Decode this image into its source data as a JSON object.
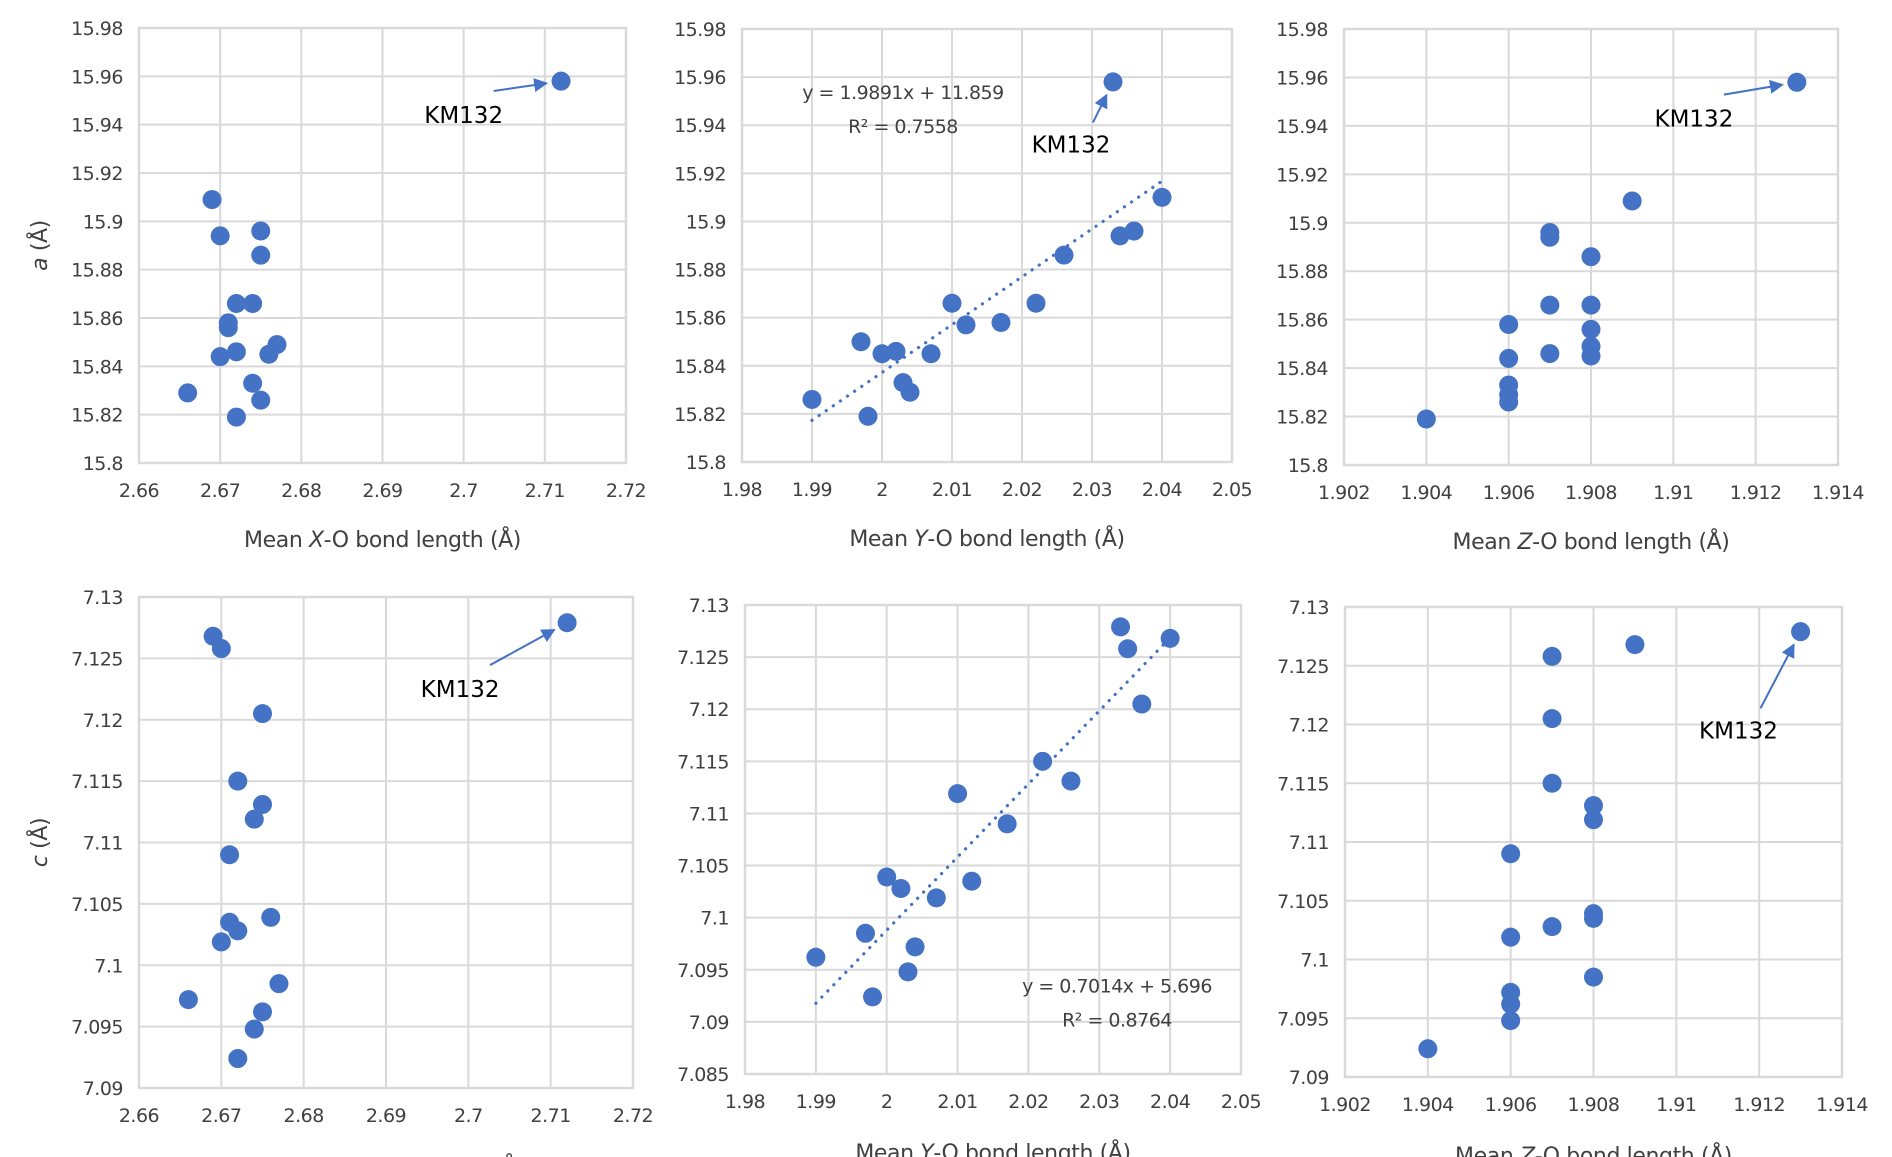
{
  "colors": {
    "marker": "#4472c4",
    "grid": "#d9d9d9",
    "text": "#404040",
    "annotation": "#000000"
  },
  "chart_data": [
    {
      "id": "a_vs_X",
      "type": "scatter",
      "title": "",
      "xlabel": {
        "prefix": "Mean ",
        "italic": "X",
        "suffix": "-O bond length (Å)"
      },
      "ylabel": {
        "italic": "a",
        "suffix": " (Å)"
      },
      "xlim": [
        2.66,
        2.72
      ],
      "ylim": [
        15.8,
        15.98
      ],
      "xticks": [
        "2.66",
        "2.67",
        "2.68",
        "2.69",
        "2.7",
        "2.71",
        "2.72"
      ],
      "yticks": [
        "15.8",
        "15.82",
        "15.84",
        "15.86",
        "15.88",
        "15.9",
        "15.92",
        "15.94",
        "15.96",
        "15.98"
      ],
      "grid": true,
      "points": [
        {
          "x": 2.669,
          "y": 15.909
        },
        {
          "x": 2.67,
          "y": 15.894
        },
        {
          "x": 2.675,
          "y": 15.896
        },
        {
          "x": 2.675,
          "y": 15.886
        },
        {
          "x": 2.672,
          "y": 15.866
        },
        {
          "x": 2.674,
          "y": 15.866
        },
        {
          "x": 2.671,
          "y": 15.858
        },
        {
          "x": 2.671,
          "y": 15.856
        },
        {
          "x": 2.677,
          "y": 15.849
        },
        {
          "x": 2.67,
          "y": 15.844
        },
        {
          "x": 2.672,
          "y": 15.846
        },
        {
          "x": 2.676,
          "y": 15.845
        },
        {
          "x": 2.674,
          "y": 15.833
        },
        {
          "x": 2.666,
          "y": 15.829
        },
        {
          "x": 2.675,
          "y": 15.826
        },
        {
          "x": 2.672,
          "y": 15.819
        },
        {
          "x": 2.712,
          "y": 15.958
        }
      ],
      "annotations": [
        {
          "text": "KM132",
          "target": {
            "x": 2.712,
            "y": 15.958
          },
          "label_at": {
            "x": 2.7,
            "y": 15.944
          }
        }
      ],
      "trendline": null
    },
    {
      "id": "a_vs_Y",
      "type": "scatter",
      "title": "",
      "xlabel": {
        "prefix": "Mean ",
        "italic": "Y",
        "suffix": "-O bond length (Å)"
      },
      "ylabel": null,
      "xlim": [
        1.98,
        2.05
      ],
      "ylim": [
        15.8,
        15.98
      ],
      "xticks": [
        "1.98",
        "1.99",
        "2",
        "2.01",
        "2.02",
        "2.03",
        "2.04",
        "2.05"
      ],
      "yticks": [
        "15.8",
        "15.82",
        "15.84",
        "15.86",
        "15.88",
        "15.9",
        "15.92",
        "15.94",
        "15.96",
        "15.98"
      ],
      "grid": true,
      "points": [
        {
          "x": 1.99,
          "y": 15.826
        },
        {
          "x": 1.997,
          "y": 15.85
        },
        {
          "x": 1.998,
          "y": 15.819
        },
        {
          "x": 2.0,
          "y": 15.845
        },
        {
          "x": 2.002,
          "y": 15.846
        },
        {
          "x": 2.003,
          "y": 15.833
        },
        {
          "x": 2.004,
          "y": 15.829
        },
        {
          "x": 2.007,
          "y": 15.845
        },
        {
          "x": 2.01,
          "y": 15.866
        },
        {
          "x": 2.012,
          "y": 15.857
        },
        {
          "x": 2.017,
          "y": 15.858
        },
        {
          "x": 2.022,
          "y": 15.866
        },
        {
          "x": 2.026,
          "y": 15.886
        },
        {
          "x": 2.034,
          "y": 15.894
        },
        {
          "x": 2.036,
          "y": 15.896
        },
        {
          "x": 2.04,
          "y": 15.91
        },
        {
          "x": 2.033,
          "y": 15.958
        }
      ],
      "annotations": [
        {
          "text": "KM132",
          "target": {
            "x": 2.033,
            "y": 15.958
          },
          "label_at": {
            "x": 2.027,
            "y": 15.932
          }
        }
      ],
      "trendline": {
        "style": "dotted",
        "x_range": [
          1.99,
          2.04
        ],
        "slope": 1.9891,
        "intercept": 11.859,
        "equation": "y = 1.9891x + 11.859",
        "r2_label": "R² = 0.7558",
        "label_at": {
          "x": 2.003,
          "y": 15.951
        }
      }
    },
    {
      "id": "a_vs_Z",
      "type": "scatter",
      "title": "",
      "xlabel": {
        "prefix": "Mean ",
        "italic": "Z",
        "suffix": "-O bond length (Å)"
      },
      "ylabel": null,
      "xlim": [
        1.902,
        1.914
      ],
      "ylim": [
        15.8,
        15.98
      ],
      "xticks": [
        "1.902",
        "1.904",
        "1.906",
        "1.908",
        "1.91",
        "1.912",
        "1.914"
      ],
      "yticks": [
        "15.8",
        "15.82",
        "15.84",
        "15.86",
        "15.88",
        "15.9",
        "15.92",
        "15.94",
        "15.96",
        "15.98"
      ],
      "grid": true,
      "points": [
        {
          "x": 1.904,
          "y": 15.819
        },
        {
          "x": 1.906,
          "y": 15.826
        },
        {
          "x": 1.906,
          "y": 15.829
        },
        {
          "x": 1.906,
          "y": 15.833
        },
        {
          "x": 1.906,
          "y": 15.844
        },
        {
          "x": 1.906,
          "y": 15.858
        },
        {
          "x": 1.907,
          "y": 15.846
        },
        {
          "x": 1.907,
          "y": 15.866
        },
        {
          "x": 1.907,
          "y": 15.894
        },
        {
          "x": 1.907,
          "y": 15.896
        },
        {
          "x": 1.908,
          "y": 15.845
        },
        {
          "x": 1.908,
          "y": 15.849
        },
        {
          "x": 1.908,
          "y": 15.856
        },
        {
          "x": 1.908,
          "y": 15.866
        },
        {
          "x": 1.908,
          "y": 15.886
        },
        {
          "x": 1.909,
          "y": 15.909
        },
        {
          "x": 1.913,
          "y": 15.958
        }
      ],
      "annotations": [
        {
          "text": "KM132",
          "target": {
            "x": 1.913,
            "y": 15.958
          },
          "label_at": {
            "x": 1.9105,
            "y": 15.943
          }
        }
      ],
      "trendline": null
    },
    {
      "id": "c_vs_X",
      "type": "scatter",
      "title": "",
      "xlabel": {
        "prefix": "Mean ",
        "italic": "X",
        "suffix": "-O bond length (Å)"
      },
      "ylabel": {
        "italic": "c",
        "suffix": " (Å)"
      },
      "xlim": [
        2.66,
        2.72
      ],
      "ylim": [
        7.09,
        7.13
      ],
      "xticks": [
        "2.66",
        "2.67",
        "2.68",
        "2.69",
        "2.7",
        "2.71",
        "2.72"
      ],
      "yticks": [
        "7.09",
        "7.095",
        "7.1",
        "7.105",
        "7.11",
        "7.115",
        "7.12",
        "7.125",
        "7.13"
      ],
      "grid": true,
      "points": [
        {
          "x": 2.669,
          "y": 7.1268
        },
        {
          "x": 2.67,
          "y": 7.1258
        },
        {
          "x": 2.675,
          "y": 7.1205
        },
        {
          "x": 2.672,
          "y": 7.115
        },
        {
          "x": 2.675,
          "y": 7.1131
        },
        {
          "x": 2.674,
          "y": 7.1119
        },
        {
          "x": 2.671,
          "y": 7.109
        },
        {
          "x": 2.676,
          "y": 7.1039
        },
        {
          "x": 2.671,
          "y": 7.1035
        },
        {
          "x": 2.672,
          "y": 7.1028
        },
        {
          "x": 2.67,
          "y": 7.1019
        },
        {
          "x": 2.677,
          "y": 7.0985
        },
        {
          "x": 2.666,
          "y": 7.0972
        },
        {
          "x": 2.675,
          "y": 7.0962
        },
        {
          "x": 2.674,
          "y": 7.0948
        },
        {
          "x": 2.672,
          "y": 7.0924
        },
        {
          "x": 2.712,
          "y": 7.1279
        }
      ],
      "annotations": [
        {
          "text": "KM132",
          "target": {
            "x": 2.712,
            "y": 7.1279
          },
          "label_at": {
            "x": 2.699,
            "y": 7.1225
          }
        }
      ],
      "trendline": null
    },
    {
      "id": "c_vs_Y",
      "type": "scatter",
      "title": "",
      "xlabel": {
        "prefix": "Mean ",
        "italic": "Y",
        "suffix": "-O bond length (Å)"
      },
      "ylabel": null,
      "xlim": [
        1.98,
        2.05
      ],
      "ylim": [
        7.085,
        7.13
      ],
      "xticks": [
        "1.98",
        "1.99",
        "2",
        "2.01",
        "2.02",
        "2.03",
        "2.04",
        "2.05"
      ],
      "yticks": [
        "7.085",
        "7.09",
        "7.095",
        "7.1",
        "7.105",
        "7.11",
        "7.115",
        "7.12",
        "7.125",
        "7.13"
      ],
      "grid": true,
      "points": [
        {
          "x": 1.99,
          "y": 7.0962
        },
        {
          "x": 1.997,
          "y": 7.0985
        },
        {
          "x": 1.998,
          "y": 7.0924
        },
        {
          "x": 2.0,
          "y": 7.1039
        },
        {
          "x": 2.002,
          "y": 7.1028
        },
        {
          "x": 2.003,
          "y": 7.0948
        },
        {
          "x": 2.004,
          "y": 7.0972
        },
        {
          "x": 2.007,
          "y": 7.1019
        },
        {
          "x": 2.01,
          "y": 7.1119
        },
        {
          "x": 2.012,
          "y": 7.1035
        },
        {
          "x": 2.017,
          "y": 7.109
        },
        {
          "x": 2.022,
          "y": 7.115
        },
        {
          "x": 2.026,
          "y": 7.1131
        },
        {
          "x": 2.033,
          "y": 7.1279
        },
        {
          "x": 2.034,
          "y": 7.1258
        },
        {
          "x": 2.036,
          "y": 7.1205
        },
        {
          "x": 2.04,
          "y": 7.1268
        }
      ],
      "annotations": [],
      "trendline": {
        "style": "dotted",
        "x_range": [
          1.99,
          2.04
        ],
        "slope": 0.7014,
        "intercept": 5.696,
        "equation": "y = 0.7014x + 5.696",
        "r2_label": "R² = 0.8764",
        "label_at": {
          "x": 2.0325,
          "y": 7.0928
        }
      }
    },
    {
      "id": "c_vs_Z",
      "type": "scatter",
      "title": "",
      "xlabel": {
        "prefix": "Mean ",
        "italic": "Z",
        "suffix": "-O bond length (Å)"
      },
      "ylabel": null,
      "xlim": [
        1.902,
        1.914
      ],
      "ylim": [
        7.09,
        7.13
      ],
      "xticks": [
        "1.902",
        "1.904",
        "1.906",
        "1.908",
        "1.91",
        "1.912",
        "1.914"
      ],
      "yticks": [
        "7.09",
        "7.095",
        "7.1",
        "7.105",
        "7.11",
        "7.115",
        "7.12",
        "7.125",
        "7.13"
      ],
      "grid": true,
      "points": [
        {
          "x": 1.904,
          "y": 7.0924
        },
        {
          "x": 1.906,
          "y": 7.0948
        },
        {
          "x": 1.906,
          "y": 7.0962
        },
        {
          "x": 1.906,
          "y": 7.0972
        },
        {
          "x": 1.906,
          "y": 7.1019
        },
        {
          "x": 1.906,
          "y": 7.109
        },
        {
          "x": 1.907,
          "y": 7.1028
        },
        {
          "x": 1.907,
          "y": 7.115
        },
        {
          "x": 1.907,
          "y": 7.1205
        },
        {
          "x": 1.907,
          "y": 7.1258
        },
        {
          "x": 1.908,
          "y": 7.0985
        },
        {
          "x": 1.908,
          "y": 7.1035
        },
        {
          "x": 1.908,
          "y": 7.1039
        },
        {
          "x": 1.908,
          "y": 7.1119
        },
        {
          "x": 1.908,
          "y": 7.1131
        },
        {
          "x": 1.909,
          "y": 7.1268
        },
        {
          "x": 1.913,
          "y": 7.1279
        }
      ],
      "annotations": [
        {
          "text": "KM132",
          "target": {
            "x": 1.913,
            "y": 7.1279
          },
          "label_at": {
            "x": 1.9115,
            "y": 7.1195
          }
        }
      ],
      "trendline": null
    }
  ]
}
